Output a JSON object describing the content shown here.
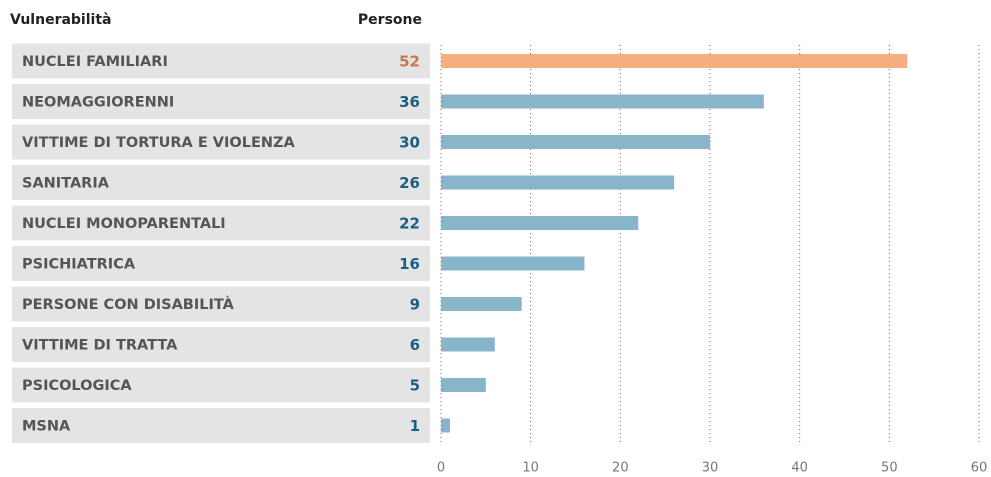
{
  "chart_data": {
    "type": "bar",
    "orientation": "horizontal",
    "category_header": "Vulnerabilità",
    "value_header": "Persone",
    "categories": [
      "NUCLEI FAMILIARI",
      "NEOMAGGIORENNI",
      "VITTIME DI TORTURA E VIOLENZA",
      "SANITARIA",
      "NUCLEI MONOPARENTALI",
      "PSICHIATRICA",
      "PERSONE CON DISABILITÀ",
      "VITTIME DI TRATTA",
      "PSICOLOGICA",
      "MSNA"
    ],
    "values": [
      52,
      36,
      30,
      26,
      22,
      16,
      9,
      6,
      5,
      1
    ],
    "colors": [
      "#f4ad7e",
      "#89b5cb",
      "#89b5cb",
      "#89b5cb",
      "#89b5cb",
      "#89b5cb",
      "#89b5cb",
      "#89b5cb",
      "#89b5cb",
      "#89b5cb"
    ],
    "value_label_colors": [
      "#c8784a",
      "#1a5e80",
      "#1a5e80",
      "#1a5e80",
      "#1a5e80",
      "#1a5e80",
      "#1a5e80",
      "#1a5e80",
      "#1a5e80",
      "#1a5e80"
    ],
    "xlim": [
      0,
      60
    ],
    "xticks": [
      0,
      10,
      20,
      30,
      40,
      50,
      60
    ],
    "grid": true
  }
}
